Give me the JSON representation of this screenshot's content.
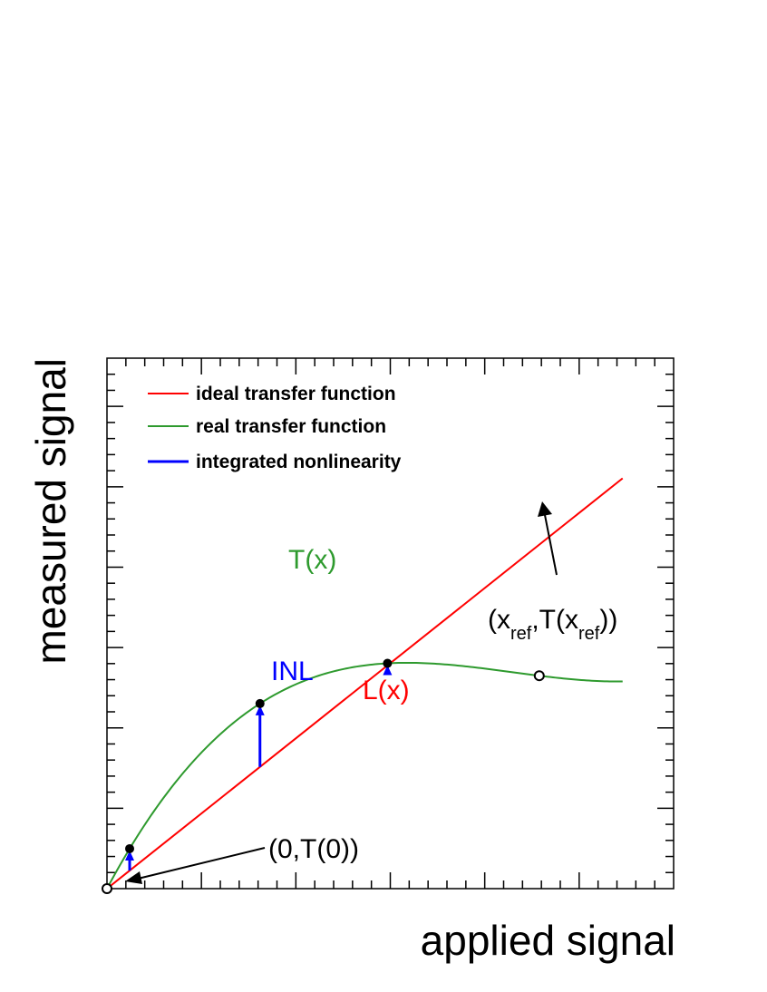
{
  "axes": {
    "x_title": "applied signal",
    "y_title": "measured signal",
    "tick_labels_shown": false,
    "major_ticks_x": 6,
    "major_ticks_y": 6,
    "minor_per_major": 5
  },
  "legend": {
    "placement": "top-left",
    "items": [
      {
        "label": "ideal transfer function",
        "color": "#ff0000",
        "kind": "line"
      },
      {
        "label": "real transfer function",
        "color": "#2e9a2e",
        "kind": "line"
      },
      {
        "label": "integrated nonlinearity",
        "color": "#0000ff",
        "kind": "arrow"
      }
    ]
  },
  "colors": {
    "ideal": "#ff0000",
    "real": "#2e9a2e",
    "inl": "#0000ff",
    "axis": "#000000"
  },
  "curves": {
    "ideal": {
      "name": "L(x)",
      "slope": 0.85,
      "intercept": 0.0,
      "x_range": [
        0,
        0.91
      ]
    },
    "real": {
      "name": "T(x)",
      "c1": 2.0,
      "c2": -3.0,
      "c3": 1.4,
      "x_range": [
        0,
        0.91
      ]
    }
  },
  "inl_arrows": [
    {
      "x": 0.04
    },
    {
      "x": 0.27,
      "label": "INL"
    },
    {
      "x": 0.495
    }
  ],
  "points": {
    "origin": {
      "x": 0.0,
      "label": "(0,T(0))"
    },
    "reference": {
      "x": 0.7629,
      "label_base": "(x",
      "label_sub1": "ref",
      "label_mid": ",T(x",
      "label_sub2": "ref",
      "label_end": "))"
    }
  },
  "labels": {
    "T": "T(x)",
    "L": "L(x)",
    "INL": "INL"
  }
}
